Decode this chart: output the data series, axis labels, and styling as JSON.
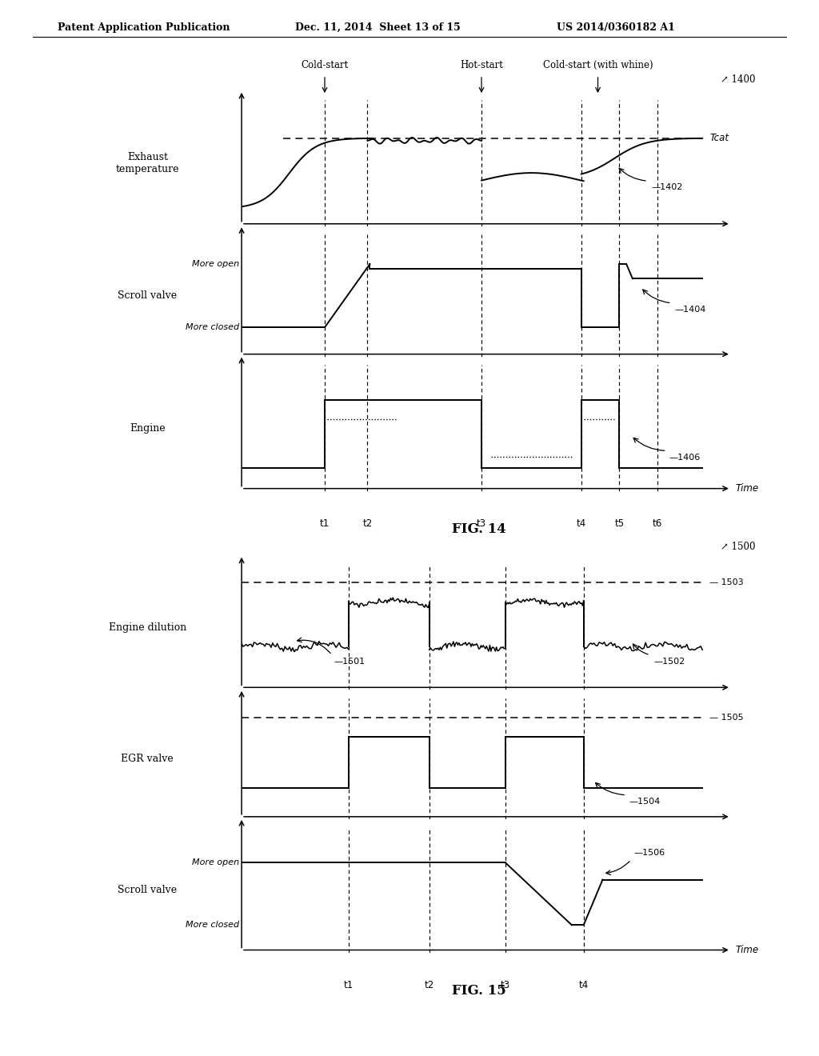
{
  "header_left": "Patent Application Publication",
  "header_mid": "Dec. 11, 2014  Sheet 13 of 15",
  "header_right": "US 2014/0360182 A1",
  "fig14_label": "FIG. 14",
  "fig15_label": "FIG. 15",
  "fig14_ref": "1400",
  "fig14_exhaust_label": "Exhaust\ntemperature",
  "fig14_scroll_label": "Scroll valve",
  "fig14_engine_label": "Engine",
  "fig14_tcat_label": "Tcat",
  "fig14_ref1402": "1402",
  "fig14_ref1404": "1404",
  "fig14_ref1406": "1406",
  "fig14_more_open": "More open",
  "fig14_more_closed": "More closed",
  "fig14_cold_start1": "Cold-start",
  "fig14_hot_start": "Hot-start",
  "fig14_cold_start2": "Cold-start (with whine)",
  "fig14_times": [
    "t1",
    "t2",
    "t3",
    "t4",
    "t5",
    "t6"
  ],
  "fig14_time_label": "Time",
  "fig15_ref": "1500",
  "fig15_engine_dil_label": "Engine dilution",
  "fig15_egr_label": "EGR valve",
  "fig15_scroll_label": "Scroll valve",
  "fig15_more_open": "More open",
  "fig15_more_closed": "More closed",
  "fig15_ref1501": "1501",
  "fig15_ref1502": "1502",
  "fig15_ref1503": "1503",
  "fig15_ref1504": "1504",
  "fig15_ref1505": "1505",
  "fig15_ref1506": "1506",
  "fig15_times": [
    "t1",
    "t2",
    "t3",
    "t4"
  ],
  "fig15_time_label": "Time",
  "bg_color": "#ffffff",
  "line_color": "#000000"
}
